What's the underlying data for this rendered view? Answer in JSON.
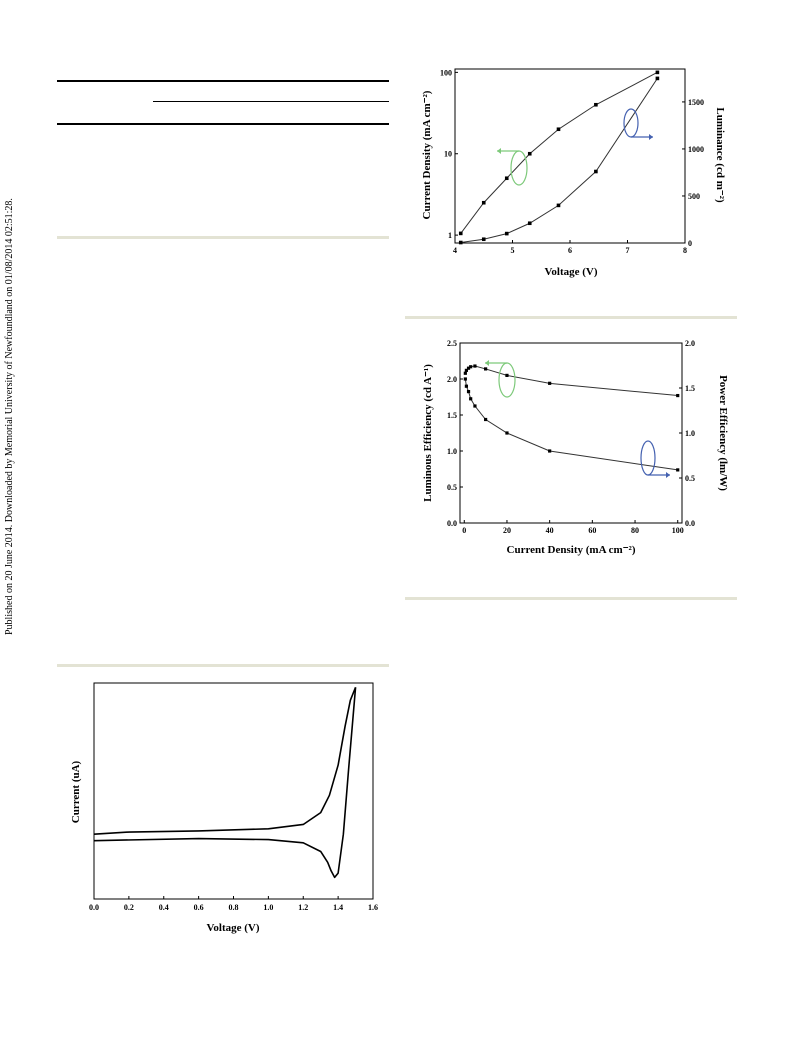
{
  "side_note": "Published on 20 June 2014. Downloaded by Memorial University of Newfoundland on 01/08/2014 02:51:28.",
  "colors": {
    "arrow_green": "#7dc97a",
    "arrow_blue": "#4461b0",
    "separator": "#e3e3d4"
  },
  "chart_data": [
    {
      "type": "line",
      "xlabel": "Voltage (V)",
      "ylabel": "Current Density (mA cm⁻²)",
      "y2label": "Luminance (cd m⁻²)",
      "xlim": [
        4,
        8
      ],
      "ylim": [
        0.8,
        110
      ],
      "yscale": "log",
      "y2lim": [
        0,
        1850
      ],
      "xticks": [
        "4",
        "5",
        "6",
        "7",
        "8"
      ],
      "yticks": [
        "1",
        "10",
        "100"
      ],
      "y2ticks": [
        "0",
        "500",
        "1000",
        "1500"
      ],
      "series": [
        {
          "axis": "left",
          "x": [
            4.1,
            4.5,
            4.9,
            5.3,
            5.8,
            6.45,
            7.52
          ],
          "y": [
            1.05,
            2.5,
            5.0,
            10,
            20,
            40,
            100
          ]
        },
        {
          "axis": "right",
          "x": [
            4.1,
            4.5,
            4.9,
            5.3,
            5.8,
            6.45,
            7.52
          ],
          "y": [
            5,
            40,
            100,
            210,
            400,
            760,
            1750
          ]
        }
      ]
    },
    {
      "type": "line",
      "xlabel": "Current Density (mA cm⁻²)",
      "ylabel": "Luminous Efficiency (cd A⁻¹)",
      "y2label": "Power Efficiency (lm/W)",
      "xlim": [
        -2,
        102
      ],
      "ylim": [
        0,
        2.5
      ],
      "y2lim": [
        0,
        2.0
      ],
      "xticks": [
        "0",
        "20",
        "40",
        "60",
        "80",
        "100"
      ],
      "yticks": [
        "0.0",
        "0.5",
        "1.0",
        "1.5",
        "2.0",
        "2.5"
      ],
      "y2ticks": [
        "0.0",
        "0.5",
        "1.0",
        "1.5",
        "2.0"
      ],
      "series": [
        {
          "axis": "left",
          "x": [
            0.5,
            1,
            2,
            3,
            5,
            10,
            20,
            40,
            100
          ],
          "y": [
            2.08,
            2.12,
            2.15,
            2.17,
            2.18,
            2.14,
            2.05,
            1.94,
            1.77
          ]
        },
        {
          "axis": "right",
          "x": [
            0.5,
            1,
            2,
            3,
            5,
            10,
            20,
            40,
            100
          ],
          "y": [
            1.6,
            1.52,
            1.46,
            1.38,
            1.3,
            1.15,
            1.0,
            0.8,
            0.59
          ]
        }
      ]
    },
    {
      "type": "line",
      "xlabel": "Voltage (V)",
      "ylabel": "Current (uA)",
      "xlim": [
        0,
        1.6
      ],
      "ylim": [
        0,
        1
      ],
      "xticks": [
        "0.0",
        "0.2",
        "0.4",
        "0.6",
        "0.8",
        "1.0",
        "1.2",
        "1.4",
        "1.6"
      ],
      "series": [
        {
          "x": [
            0.0,
            0.2,
            0.6,
            1.0,
            1.2,
            1.3,
            1.35,
            1.4,
            1.44,
            1.47,
            1.5
          ],
          "y": [
            0.3,
            0.31,
            0.315,
            0.325,
            0.345,
            0.4,
            0.48,
            0.62,
            0.8,
            0.92,
            0.98
          ]
        },
        {
          "x": [
            1.5,
            1.46,
            1.43,
            1.4,
            1.38,
            1.36,
            1.34,
            1.3,
            1.2,
            1.0,
            0.6,
            0.0
          ],
          "y": [
            0.98,
            0.6,
            0.3,
            0.12,
            0.1,
            0.13,
            0.17,
            0.22,
            0.26,
            0.275,
            0.28,
            0.27
          ]
        }
      ]
    }
  ]
}
